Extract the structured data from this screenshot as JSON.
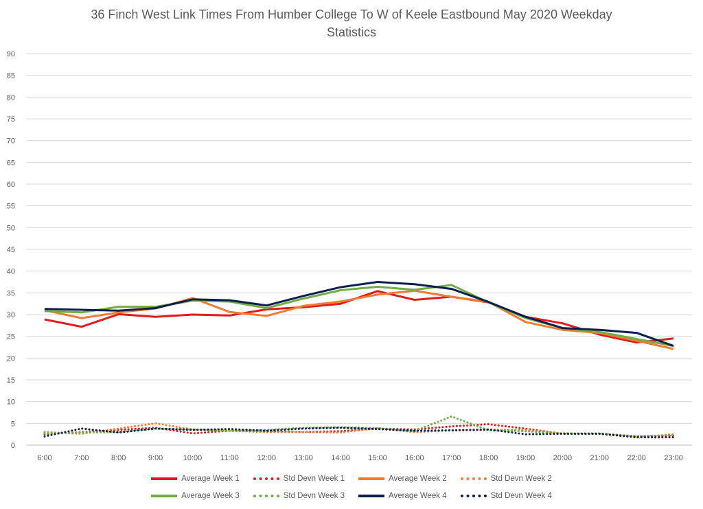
{
  "chart_data": {
    "type": "line",
    "title_lines": [
      "36 Finch West Link Times From Humber College To W of Keele Eastbound May 2020 Weekday",
      "Statistics"
    ],
    "categories": [
      "6:00",
      "7:00",
      "8:00",
      "9:00",
      "10:00",
      "11:00",
      "12:00",
      "13:00",
      "14:00",
      "15:00",
      "16:00",
      "17:00",
      "18:00",
      "19:00",
      "20:00",
      "21:00",
      "22:00",
      "23:00"
    ],
    "ylim": [
      0,
      90
    ],
    "yticks": [
      0,
      5,
      10,
      15,
      20,
      25,
      30,
      35,
      40,
      45,
      50,
      55,
      60,
      65,
      70,
      75,
      80,
      85,
      90
    ],
    "grid": true,
    "legend_position": "bottom",
    "series": [
      {
        "name": "Average Week 1",
        "color": "#e31a1c",
        "style": "solid",
        "values": [
          28.9,
          27.2,
          30.1,
          29.5,
          30.0,
          29.8,
          31.2,
          31.7,
          32.5,
          35.4,
          33.4,
          34.1,
          32.8,
          29.5,
          28.0,
          25.4,
          23.6,
          24.5
        ]
      },
      {
        "name": "Std Devn Week 1",
        "color": "#e31a1c",
        "style": "dotted",
        "values": [
          2.5,
          3.0,
          3.5,
          4.0,
          2.7,
          3.3,
          3.2,
          3.0,
          3.2,
          3.8,
          3.6,
          4.3,
          4.8,
          3.8,
          2.6,
          2.6,
          2.0,
          2.2
        ]
      },
      {
        "name": "Average Week 2",
        "color": "#ed7d31",
        "style": "solid",
        "values": [
          31.0,
          29.2,
          30.5,
          31.4,
          33.8,
          30.6,
          29.7,
          32.0,
          33.0,
          34.6,
          35.5,
          34.1,
          32.9,
          28.3,
          26.5,
          25.8,
          24.0,
          22.1
        ]
      },
      {
        "name": "Std Devn Week 2",
        "color": "#ed7d31",
        "style": "dotted",
        "values": [
          3.0,
          2.6,
          3.8,
          5.0,
          3.6,
          3.3,
          3.0,
          3.0,
          2.9,
          3.9,
          3.0,
          3.4,
          3.5,
          3.5,
          2.7,
          2.6,
          1.8,
          2.5
        ]
      },
      {
        "name": "Average Week 3",
        "color": "#70ad47",
        "style": "solid",
        "values": [
          30.8,
          30.5,
          31.8,
          31.8,
          33.2,
          33.0,
          31.5,
          33.7,
          35.6,
          36.4,
          35.7,
          36.8,
          32.8,
          29.2,
          26.9,
          26.0,
          24.4,
          22.8
        ]
      },
      {
        "name": "Std Devn Week 3",
        "color": "#70ad47",
        "style": "dotted",
        "values": [
          2.7,
          2.9,
          3.0,
          3.8,
          3.6,
          3.3,
          3.5,
          4.0,
          4.1,
          3.9,
          3.2,
          6.6,
          3.4,
          3.2,
          2.7,
          2.7,
          2.0,
          2.3
        ]
      },
      {
        "name": "Average Week 4",
        "color": "#0d1f4d",
        "style": "solid",
        "values": [
          31.3,
          31.1,
          30.9,
          31.5,
          33.5,
          33.3,
          32.1,
          34.3,
          36.3,
          37.5,
          37.0,
          35.9,
          32.9,
          29.5,
          26.9,
          26.5,
          25.8,
          22.8
        ]
      },
      {
        "name": "Std Devn Week 4",
        "color": "#0d1f4d",
        "style": "dotted",
        "values": [
          2.0,
          3.8,
          2.9,
          3.8,
          3.5,
          3.7,
          3.3,
          3.8,
          4.0,
          3.7,
          3.3,
          3.4,
          3.6,
          2.5,
          2.6,
          2.6,
          1.8,
          1.8
        ]
      }
    ]
  }
}
